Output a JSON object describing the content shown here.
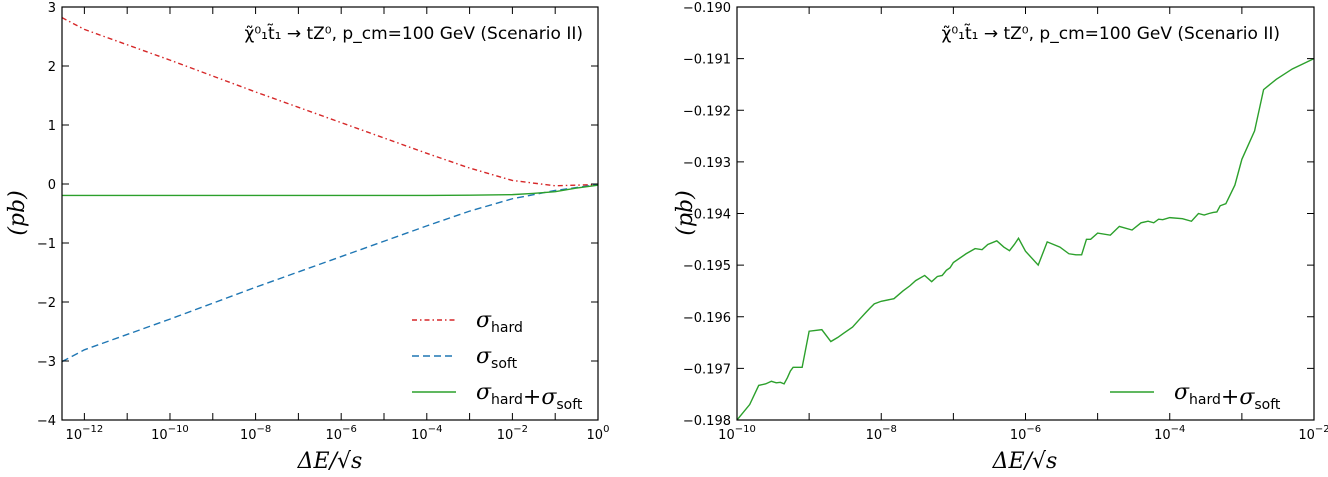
{
  "chart_data": [
    {
      "type": "line",
      "annotation": "χ̃⁰₁t̃₁ → tZ⁰, p_cm=100 GeV (Scenario II)",
      "xlabel": "ΔE/√s",
      "ylabel": "(pb)",
      "xscale": "log",
      "xlim": [
        3e-13,
        1
      ],
      "ylim": [
        -4,
        3
      ],
      "x_tick_labels": [
        "10^-12",
        "10^-10",
        "10^-8",
        "10^-6",
        "10^-4",
        "10^-2",
        "10^0"
      ],
      "y_tick_labels": [
        "−4",
        "−3",
        "−2",
        "−1",
        "0",
        "1",
        "2",
        "3"
      ],
      "legend_position": "lower-right",
      "series": [
        {
          "name": "σ_hard",
          "color": "#d62728",
          "style": "dash-dot",
          "x": [
            3e-13,
            1e-12,
            1e-11,
            1e-10,
            1e-09,
            1e-08,
            1e-07,
            1e-06,
            1e-05,
            0.0001,
            0.001,
            0.01,
            0.1,
            1
          ],
          "y": [
            2.82,
            2.62,
            2.36,
            2.1,
            1.83,
            1.56,
            1.3,
            1.04,
            0.78,
            0.52,
            0.27,
            0.06,
            -0.03,
            -0.01
          ]
        },
        {
          "name": "σ_soft",
          "color": "#1f77b4",
          "style": "dashed",
          "x": [
            3e-13,
            1e-12,
            1e-11,
            1e-10,
            1e-09,
            1e-08,
            1e-07,
            1e-06,
            1e-05,
            0.0001,
            0.001,
            0.01,
            0.1,
            1
          ],
          "y": [
            -3.01,
            -2.81,
            -2.55,
            -2.29,
            -2.02,
            -1.75,
            -1.49,
            -1.23,
            -0.97,
            -0.71,
            -0.46,
            -0.25,
            -0.11,
            -0.01
          ]
        },
        {
          "name": "σ_hard+σ_soft",
          "color": "#2ca02c",
          "style": "solid",
          "x": [
            3e-13,
            1e-10,
            1e-06,
            0.0001,
            0.001,
            0.01,
            0.03,
            0.1,
            0.3,
            1
          ],
          "y": [
            -0.194,
            -0.194,
            -0.194,
            -0.193,
            -0.19,
            -0.18,
            -0.16,
            -0.13,
            -0.07,
            -0.02
          ]
        }
      ]
    },
    {
      "type": "line",
      "annotation": "χ̃⁰₁t̃₁ → tZ⁰, p_cm=100 GeV (Scenario II)",
      "xlabel": "ΔE/√s",
      "ylabel": "(pb)",
      "xscale": "log",
      "xlim": [
        1e-10,
        0.01
      ],
      "ylim": [
        -0.198,
        -0.19
      ],
      "x_tick_labels": [
        "10^-10",
        "10^-8",
        "10^-6",
        "10^-4",
        "10^-2"
      ],
      "y_tick_labels": [
        "−0.198",
        "−0.197",
        "−0.196",
        "−0.195",
        "−0.194",
        "−0.193",
        "−0.192",
        "−0.191",
        "−0.190"
      ],
      "legend_position": "lower-right",
      "series": [
        {
          "name": "σ_hard+σ_soft",
          "color": "#2ca02c",
          "style": "solid",
          "x": [
            1e-10,
            1.5e-10,
            2e-10,
            2.5e-10,
            3e-10,
            3.5e-10,
            4e-10,
            4.5e-10,
            5e-10,
            5.5e-10,
            6e-10,
            8e-10,
            1e-09,
            1.5e-09,
            2e-09,
            2.5e-09,
            3e-09,
            4e-09,
            5e-09,
            6e-09,
            7e-09,
            8e-09,
            1e-08,
            1.5e-08,
            2e-08,
            2.5e-08,
            3e-08,
            4e-08,
            5e-08,
            6e-08,
            7e-08,
            8e-08,
            9e-08,
            1e-07,
            1.5e-07,
            2e-07,
            2.5e-07,
            3e-07,
            4e-07,
            5e-07,
            6e-07,
            7e-07,
            8e-07,
            1e-06,
            1.5e-06,
            2e-06,
            3e-06,
            4e-06,
            5e-06,
            6e-06,
            7e-06,
            8e-06,
            1e-05,
            1.5e-05,
            2e-05,
            3e-05,
            4e-05,
            5e-05,
            6e-05,
            7e-05,
            8e-05,
            0.0001,
            0.00015,
            0.0002,
            0.00025,
            0.0003,
            0.00035,
            0.0004,
            0.00045,
            0.0005,
            0.0006,
            0.0008,
            0.001,
            0.0015,
            0.002,
            0.003,
            0.005,
            0.01
          ],
          "y": [
            -0.198,
            -0.1977,
            -0.19733,
            -0.1973,
            -0.19725,
            -0.19728,
            -0.19727,
            -0.1973,
            -0.19718,
            -0.19705,
            -0.19698,
            -0.19698,
            -0.19628,
            -0.19625,
            -0.19648,
            -0.1964,
            -0.19632,
            -0.1962,
            -0.19605,
            -0.19593,
            -0.19583,
            -0.19575,
            -0.1957,
            -0.19565,
            -0.1955,
            -0.1954,
            -0.1953,
            -0.1952,
            -0.19532,
            -0.19522,
            -0.1952,
            -0.1951,
            -0.19505,
            -0.19495,
            -0.19478,
            -0.19468,
            -0.1947,
            -0.1946,
            -0.19453,
            -0.19465,
            -0.19472,
            -0.1946,
            -0.19448,
            -0.19473,
            -0.195,
            -0.19455,
            -0.19465,
            -0.19478,
            -0.1948,
            -0.1948,
            -0.1945,
            -0.1945,
            -0.19438,
            -0.19442,
            -0.19425,
            -0.19432,
            -0.19418,
            -0.19415,
            -0.19418,
            -0.19411,
            -0.19412,
            -0.19408,
            -0.1941,
            -0.19415,
            -0.194,
            -0.19403,
            -0.194,
            -0.19398,
            -0.19397,
            -0.19385,
            -0.19381,
            -0.19345,
            -0.19295,
            -0.1924,
            -0.1916,
            -0.1914,
            -0.1912,
            -0.191
          ]
        }
      ]
    }
  ]
}
